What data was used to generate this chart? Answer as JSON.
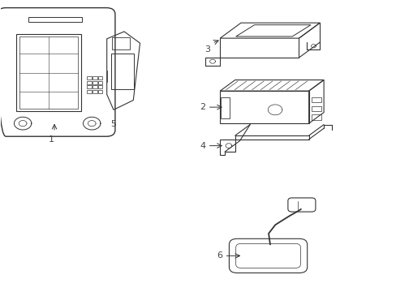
{
  "title": "",
  "background_color": "#ffffff",
  "line_color": "#333333",
  "label_color": "#444444",
  "figsize": [
    4.89,
    3.6
  ],
  "dpi": 100
}
